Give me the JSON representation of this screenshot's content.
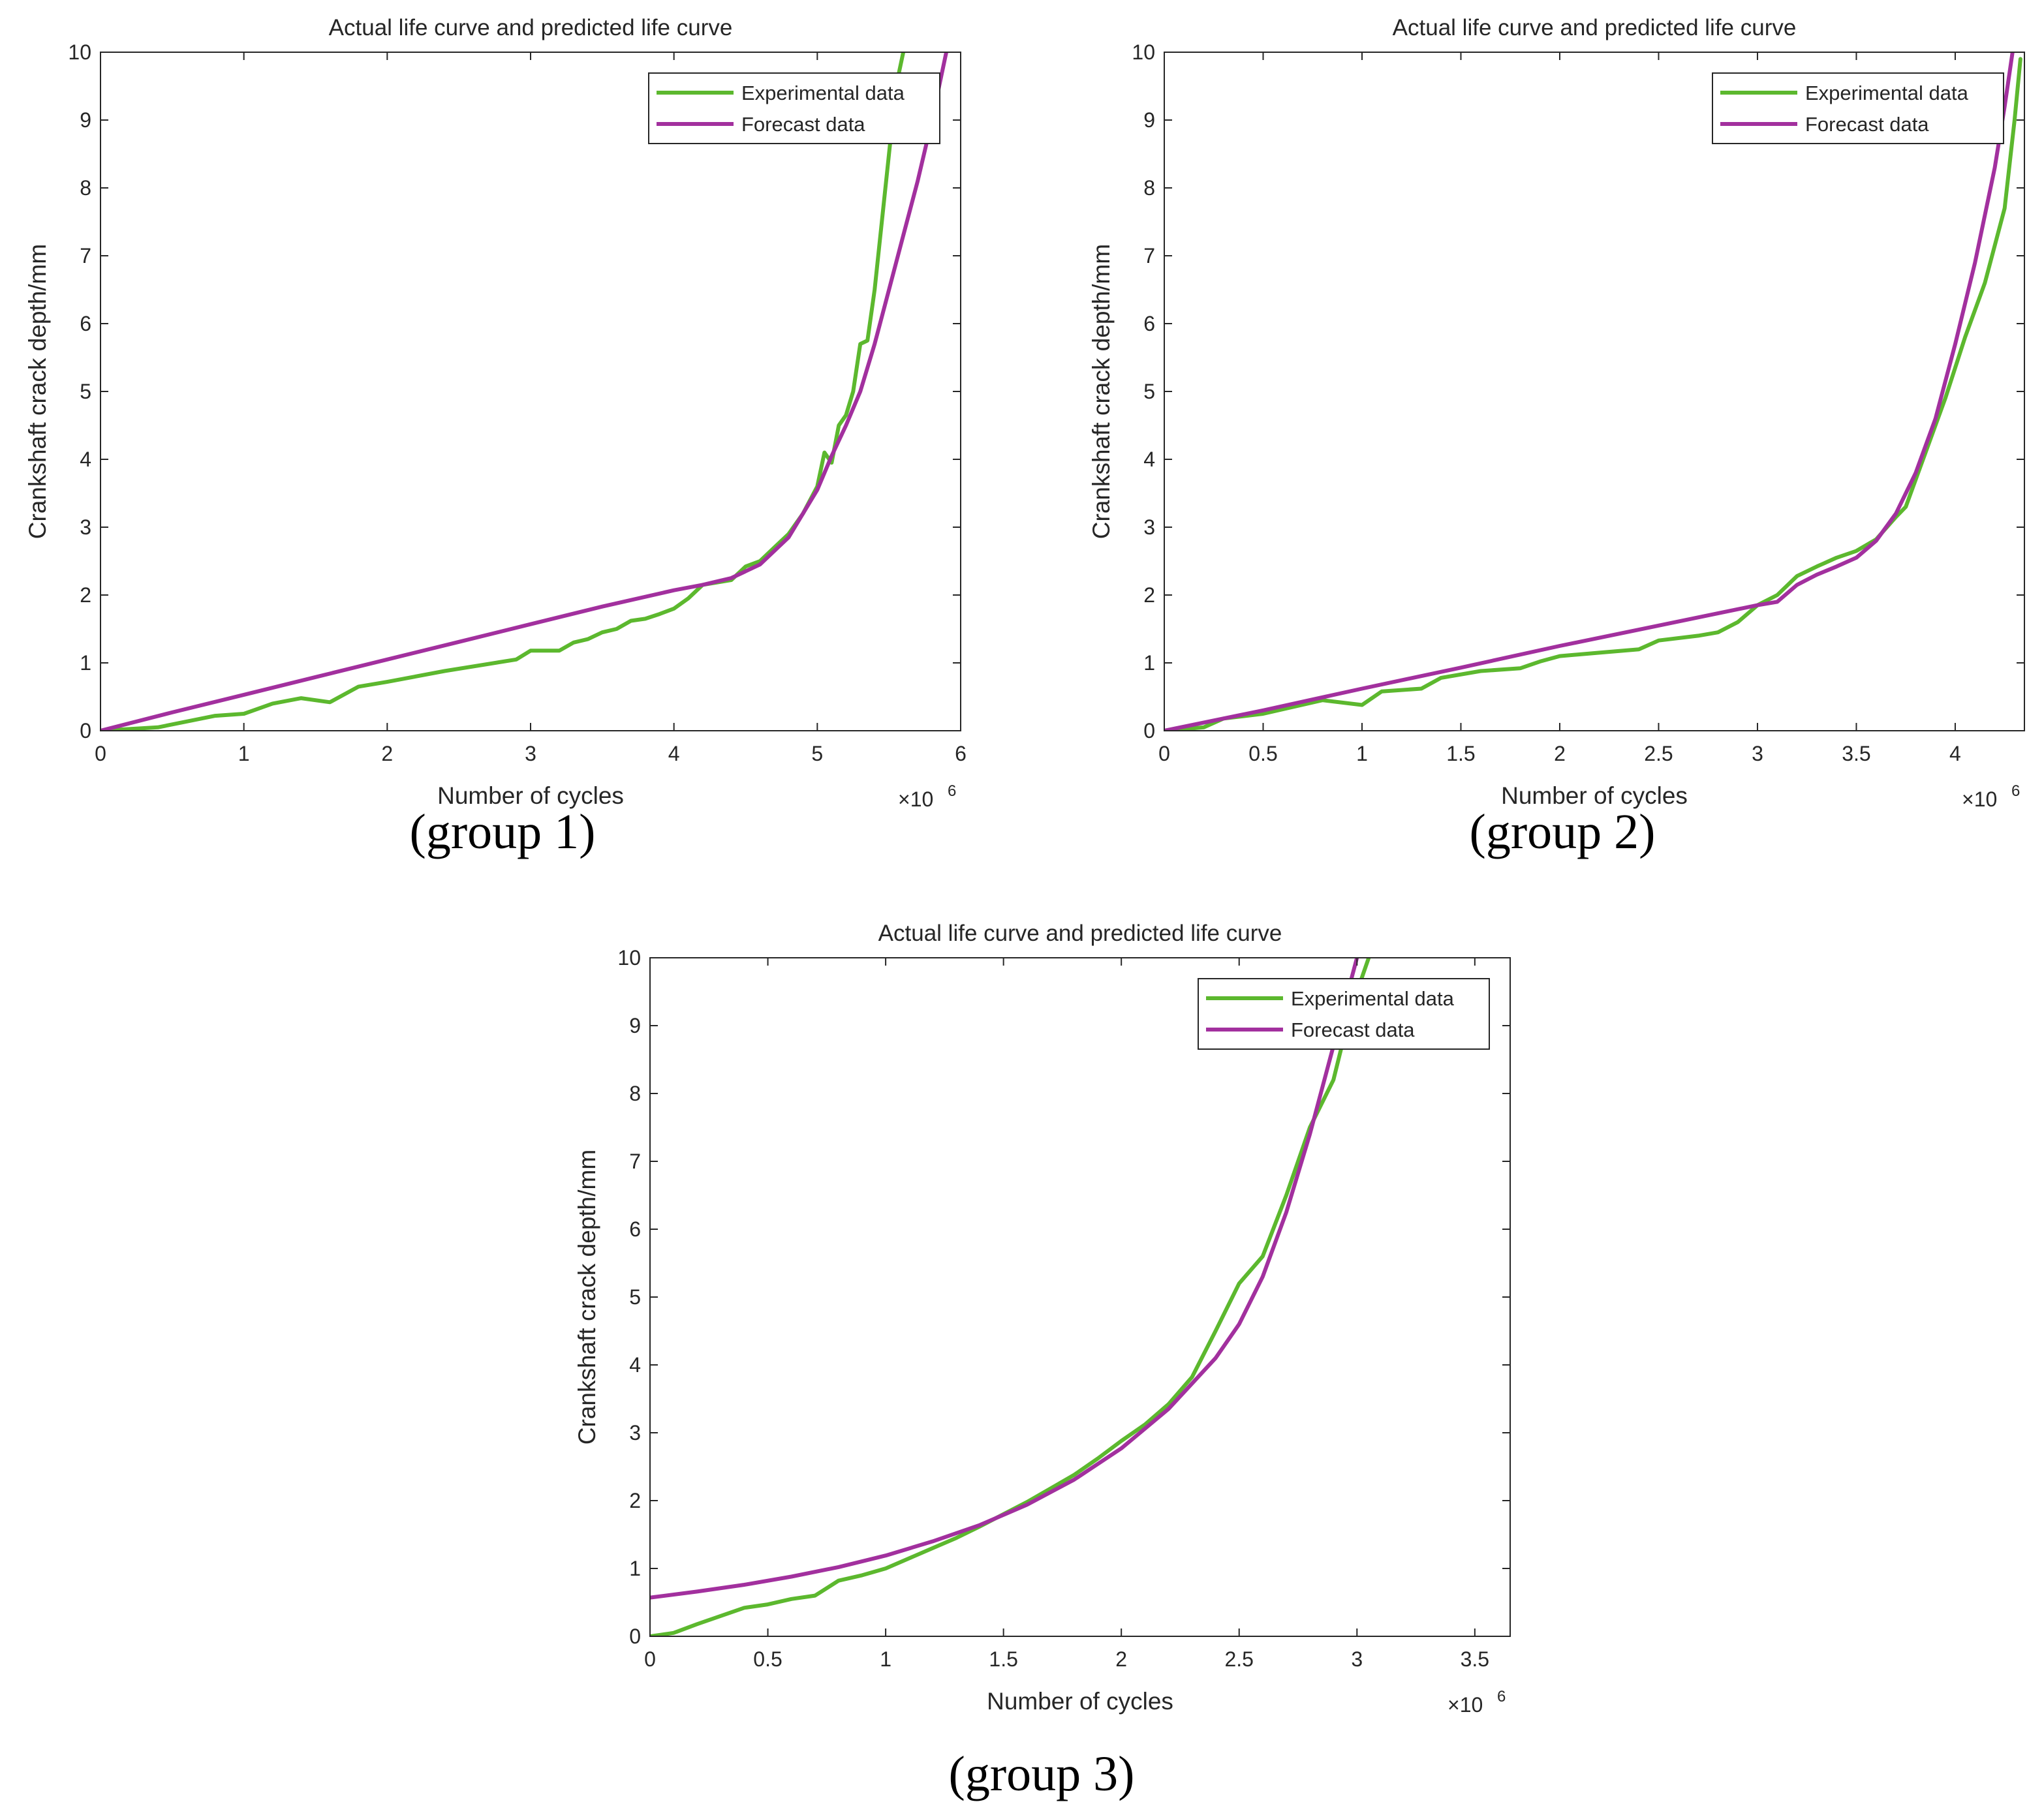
{
  "colors": {
    "experimental": "#5cb82e",
    "forecast": "#a2309e",
    "axis": "#262626"
  },
  "chart_data": [
    {
      "type": "line",
      "title": "Actual life curve and predicted life curve",
      "xlabel": "Number of cycles",
      "ylabel": "Crankshaft crack depth/mm",
      "x_scale_label": "×10",
      "x_scale_exponent": "6",
      "caption": "(group 1)",
      "xlim": [
        0,
        6
      ],
      "ylim": [
        0,
        10
      ],
      "xticks": [
        "0",
        "1",
        "2",
        "3",
        "4",
        "5",
        "6"
      ],
      "yticks": [
        "0",
        "1",
        "2",
        "3",
        "4",
        "5",
        "6",
        "7",
        "8",
        "9",
        "10"
      ],
      "grid": false,
      "legend_position": "top-right",
      "series": [
        {
          "name": "Experimental data",
          "color": "#5cb82e",
          "x": [
            0,
            0.4,
            0.8,
            1.0,
            1.2,
            1.4,
            1.6,
            1.8,
            2.0,
            2.4,
            2.9,
            3.0,
            3.2,
            3.3,
            3.4,
            3.5,
            3.6,
            3.7,
            3.8,
            3.9,
            4.0,
            4.1,
            4.2,
            4.4,
            4.5,
            4.6,
            4.7,
            4.8,
            4.9,
            5.0,
            5.05,
            5.1,
            5.15,
            5.2,
            5.25,
            5.3,
            5.35,
            5.4,
            5.45,
            5.5,
            5.55,
            5.6
          ],
          "y": [
            0,
            0.05,
            0.22,
            0.25,
            0.4,
            0.48,
            0.42,
            0.65,
            0.72,
            0.88,
            1.05,
            1.18,
            1.18,
            1.3,
            1.35,
            1.45,
            1.5,
            1.62,
            1.65,
            1.72,
            1.8,
            1.95,
            2.15,
            2.22,
            2.42,
            2.5,
            2.7,
            2.9,
            3.2,
            3.6,
            4.1,
            3.95,
            4.5,
            4.65,
            5.0,
            5.7,
            5.75,
            6.5,
            7.5,
            8.5,
            9.5,
            10.0
          ]
        },
        {
          "name": "Forecast data",
          "color": "#a2309e",
          "x": [
            0,
            0.5,
            1.0,
            1.5,
            2.0,
            2.5,
            3.0,
            3.5,
            4.0,
            4.2,
            4.4,
            4.6,
            4.8,
            5.0,
            5.1,
            5.2,
            5.3,
            5.4,
            5.5,
            5.6,
            5.7,
            5.8,
            5.9
          ],
          "y": [
            0,
            0.27,
            0.53,
            0.79,
            1.05,
            1.31,
            1.57,
            1.83,
            2.07,
            2.15,
            2.25,
            2.45,
            2.85,
            3.55,
            4.05,
            4.5,
            5.0,
            5.7,
            6.5,
            7.3,
            8.1,
            9.0,
            10.0
          ]
        }
      ]
    },
    {
      "type": "line",
      "title": "Actual life curve and predicted life curve",
      "xlabel": "Number of cycles",
      "ylabel": "Crankshaft crack depth/mm",
      "x_scale_label": "×10",
      "x_scale_exponent": "6",
      "caption": "(group 2)",
      "xlim": [
        0,
        4.35
      ],
      "ylim": [
        0,
        10
      ],
      "xticks": [
        "0",
        "0.5",
        "1",
        "1.5",
        "2",
        "2.5",
        "3",
        "3.5",
        "4"
      ],
      "yticks": [
        "0",
        "1",
        "2",
        "3",
        "4",
        "5",
        "6",
        "7",
        "8",
        "9",
        "10"
      ],
      "grid": false,
      "legend_position": "top-right",
      "series": [
        {
          "name": "Experimental data",
          "color": "#5cb82e",
          "x": [
            0,
            0.2,
            0.3,
            0.5,
            0.8,
            1.0,
            1.1,
            1.3,
            1.4,
            1.6,
            1.8,
            1.9,
            2.0,
            2.2,
            2.4,
            2.5,
            2.7,
            2.8,
            2.9,
            3.0,
            3.1,
            3.2,
            3.3,
            3.4,
            3.5,
            3.6,
            3.7,
            3.75,
            3.85,
            3.95,
            4.05,
            4.15,
            4.25,
            4.3,
            4.33
          ],
          "y": [
            0,
            0.05,
            0.18,
            0.25,
            0.45,
            0.38,
            0.58,
            0.62,
            0.78,
            0.88,
            0.92,
            1.02,
            1.1,
            1.15,
            1.2,
            1.33,
            1.4,
            1.45,
            1.6,
            1.85,
            2.0,
            2.28,
            2.42,
            2.55,
            2.65,
            2.82,
            3.15,
            3.3,
            4.1,
            4.9,
            5.8,
            6.6,
            7.7,
            9.0,
            9.9
          ]
        },
        {
          "name": "Forecast data",
          "color": "#a2309e",
          "x": [
            0,
            0.5,
            1.0,
            1.5,
            2.0,
            2.5,
            3.0,
            3.1,
            3.2,
            3.3,
            3.4,
            3.5,
            3.6,
            3.7,
            3.8,
            3.9,
            4.0,
            4.1,
            4.2,
            4.25,
            4.29
          ],
          "y": [
            0,
            0.3,
            0.62,
            0.93,
            1.25,
            1.55,
            1.85,
            1.9,
            2.15,
            2.3,
            2.42,
            2.55,
            2.8,
            3.2,
            3.8,
            4.6,
            5.7,
            6.9,
            8.3,
            9.2,
            10.0
          ]
        }
      ]
    },
    {
      "type": "line",
      "title": "Actual life curve and predicted life curve",
      "xlabel": "Number of cycles",
      "ylabel": "Crankshaft crack depth/mm",
      "x_scale_label": "×10",
      "x_scale_exponent": "6",
      "caption": "(group 3)",
      "xlim": [
        0,
        3.65
      ],
      "ylim": [
        0,
        10
      ],
      "xticks": [
        "0",
        "0.5",
        "1",
        "1.5",
        "2",
        "2.5",
        "3",
        "3.5"
      ],
      "yticks": [
        "0",
        "1",
        "2",
        "3",
        "4",
        "5",
        "6",
        "7",
        "8",
        "9",
        "10"
      ],
      "grid": false,
      "legend_position": "top-right",
      "series": [
        {
          "name": "Experimental data",
          "color": "#5cb82e",
          "x": [
            0,
            0.1,
            0.2,
            0.3,
            0.4,
            0.5,
            0.6,
            0.7,
            0.8,
            0.9,
            1.0,
            1.1,
            1.2,
            1.3,
            1.4,
            1.5,
            1.6,
            1.7,
            1.8,
            1.9,
            2.0,
            2.1,
            2.2,
            2.3,
            2.4,
            2.5,
            2.6,
            2.7,
            2.8,
            2.9,
            2.95,
            3.0,
            3.05
          ],
          "y": [
            0,
            0.05,
            0.18,
            0.3,
            0.42,
            0.47,
            0.55,
            0.6,
            0.82,
            0.9,
            1.0,
            1.15,
            1.3,
            1.45,
            1.62,
            1.8,
            1.98,
            2.18,
            2.38,
            2.62,
            2.88,
            3.12,
            3.42,
            3.82,
            4.5,
            5.2,
            5.6,
            6.5,
            7.5,
            8.2,
            8.9,
            9.5,
            10.0
          ]
        },
        {
          "name": "Forecast data",
          "color": "#a2309e",
          "x": [
            0,
            0.2,
            0.4,
            0.6,
            0.8,
            1.0,
            1.2,
            1.4,
            1.6,
            1.8,
            2.0,
            2.2,
            2.4,
            2.5,
            2.6,
            2.7,
            2.8,
            2.9,
            3.0
          ],
          "y": [
            0.57,
            0.66,
            0.76,
            0.88,
            1.02,
            1.19,
            1.4,
            1.64,
            1.94,
            2.31,
            2.77,
            3.35,
            4.1,
            4.6,
            5.3,
            6.25,
            7.4,
            8.7,
            10.0
          ]
        }
      ]
    }
  ]
}
